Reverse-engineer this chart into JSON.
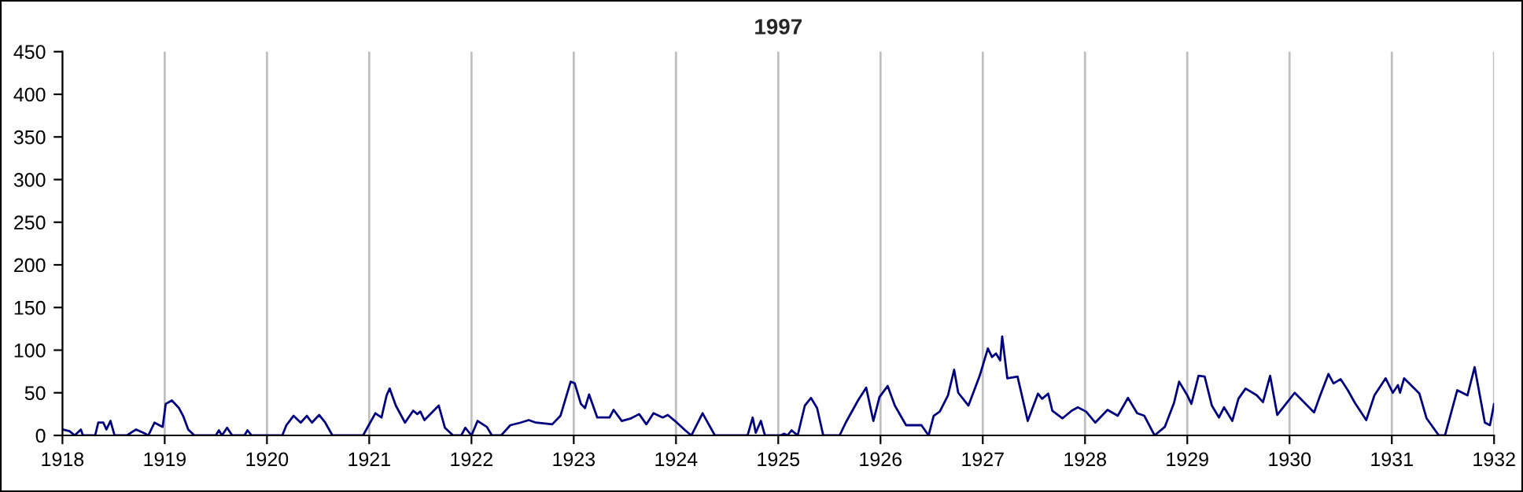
{
  "chart_data": {
    "type": "line",
    "title": "1997",
    "x": [
      1918.0,
      1918.07,
      1918.12,
      1918.18,
      1918.2,
      1918.32,
      1918.35,
      1918.4,
      1918.43,
      1918.47,
      1918.51,
      1918.63,
      1918.72,
      1918.81,
      1918.84,
      1918.9,
      1918.98,
      1919.01,
      1919.07,
      1919.14,
      1919.18,
      1919.23,
      1919.29,
      1919.5,
      1919.53,
      1919.56,
      1919.61,
      1919.66,
      1919.78,
      1919.81,
      1919.85,
      1920.15,
      1920.19,
      1920.26,
      1920.33,
      1920.39,
      1920.44,
      1920.51,
      1920.57,
      1920.64,
      1920.94,
      1921.06,
      1921.12,
      1921.17,
      1921.2,
      1921.26,
      1921.35,
      1921.43,
      1921.47,
      1921.5,
      1921.54,
      1921.68,
      1921.74,
      1921.82,
      1921.9,
      1921.94,
      1922.0,
      1922.06,
      1922.15,
      1922.2,
      1922.29,
      1922.38,
      1922.48,
      1922.56,
      1922.63,
      1922.79,
      1922.87,
      1922.97,
      1923.01,
      1923.07,
      1923.11,
      1923.15,
      1923.23,
      1923.35,
      1923.39,
      1923.47,
      1923.56,
      1923.64,
      1923.71,
      1923.78,
      1923.87,
      1923.92,
      1923.99,
      1924.09,
      1924.15,
      1924.26,
      1924.38,
      1924.7,
      1924.75,
      1924.78,
      1924.83,
      1924.87,
      1925.02,
      1925.06,
      1925.09,
      1925.13,
      1925.19,
      1925.26,
      1925.32,
      1925.38,
      1925.44,
      1925.6,
      1925.66,
      1925.78,
      1925.86,
      1925.93,
      1925.99,
      1926.07,
      1926.14,
      1926.25,
      1926.4,
      1926.47,
      1926.52,
      1926.58,
      1926.66,
      1926.72,
      1926.76,
      1926.86,
      1926.97,
      1927.05,
      1927.09,
      1927.13,
      1927.17,
      1927.19,
      1927.24,
      1927.34,
      1927.44,
      1927.54,
      1927.58,
      1927.64,
      1927.68,
      1927.78,
      1927.87,
      1927.93,
      1928.01,
      1928.1,
      1928.22,
      1928.32,
      1928.42,
      1928.51,
      1928.58,
      1928.68,
      1928.78,
      1928.87,
      1928.92,
      1929.0,
      1929.04,
      1929.11,
      1929.17,
      1929.24,
      1929.31,
      1929.36,
      1929.44,
      1929.5,
      1929.57,
      1929.68,
      1929.74,
      1929.81,
      1929.88,
      1930.05,
      1930.24,
      1930.3,
      1930.38,
      1930.43,
      1930.5,
      1930.57,
      1930.64,
      1930.75,
      1930.83,
      1930.94,
      1931.01,
      1931.06,
      1931.08,
      1931.12,
      1931.27,
      1931.34,
      1931.46,
      1931.52,
      1931.64,
      1931.74,
      1931.81,
      1931.91,
      1931.96,
      1932.0
    ],
    "series": [
      {
        "color": "#000080",
        "values": [
          7,
          5,
          0,
          7,
          0,
          0,
          15,
          15,
          7,
          17,
          0,
          0,
          7,
          2,
          0,
          15,
          10,
          37,
          41,
          32,
          23,
          7,
          0,
          0,
          6,
          0,
          9,
          0,
          0,
          6,
          0,
          0,
          12,
          23,
          15,
          23,
          15,
          24,
          15,
          0,
          0,
          26,
          21,
          47,
          55,
          35,
          15,
          29,
          25,
          28,
          18,
          35,
          9,
          0,
          0,
          9,
          0,
          17,
          10,
          0,
          0,
          12,
          15,
          18,
          15,
          13,
          23,
          63,
          61,
          37,
          32,
          48,
          21,
          21,
          30,
          17,
          20,
          25,
          13,
          26,
          21,
          24,
          17,
          6,
          0,
          26,
          0,
          0,
          21,
          3,
          17,
          0,
          0,
          2,
          0,
          6,
          0,
          35,
          44,
          32,
          0,
          0,
          15,
          41,
          56,
          17,
          45,
          58,
          35,
          12,
          12,
          0,
          23,
          28,
          47,
          77,
          50,
          35,
          70,
          102,
          92,
          96,
          88,
          116,
          67,
          69,
          17,
          49,
          43,
          49,
          29,
          20,
          29,
          33,
          28,
          15,
          30,
          23,
          44,
          26,
          23,
          0,
          10,
          38,
          63,
          47,
          37,
          70,
          69,
          35,
          21,
          33,
          17,
          43,
          55,
          47,
          39,
          70,
          24,
          50,
          27,
          47,
          72,
          61,
          66,
          53,
          38,
          18,
          47,
          67,
          50,
          59,
          50,
          67,
          49,
          20,
          0,
          0,
          53,
          47,
          80,
          15,
          12,
          37
        ]
      }
    ],
    "xlim": [
      1918,
      1932
    ],
    "xticks": [
      1918,
      1919,
      1920,
      1921,
      1922,
      1923,
      1924,
      1925,
      1926,
      1927,
      1928,
      1929,
      1930,
      1931,
      1932
    ],
    "ylim": [
      0,
      450
    ],
    "yticks": [
      0,
      50,
      100,
      150,
      200,
      250,
      300,
      350,
      400,
      450
    ],
    "grid": "x",
    "marker": "none",
    "line_style": "solid",
    "legend": false
  }
}
